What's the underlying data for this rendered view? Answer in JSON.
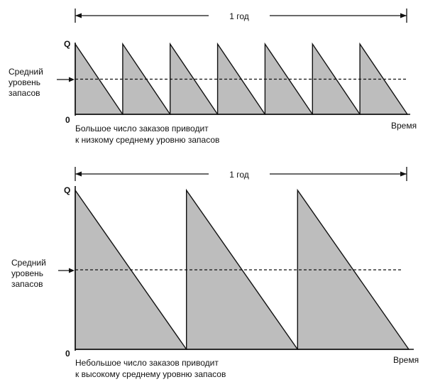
{
  "chart_data": [
    {
      "type": "area",
      "pattern": "sawtooth",
      "cycles": 7,
      "average_fraction": 0.5,
      "y_top_label": "Q",
      "y_zero_label": "0",
      "y_side_label_lines": [
        "Средний",
        "уровень",
        "запасов"
      ],
      "x_axis_label": "Время",
      "span_label": "1 год",
      "caption_lines": [
        "Большое число заказов приводит",
        "к низкому среднему уровню запасов"
      ],
      "fill_color": "#bdbdbd",
      "line_color": "#111111"
    },
    {
      "type": "area",
      "pattern": "sawtooth",
      "cycles": 3,
      "average_fraction": 0.5,
      "y_top_label": "Q",
      "y_zero_label": "0",
      "y_side_label_lines": [
        "Средний",
        "уровень",
        "запасов"
      ],
      "x_axis_label": "Время",
      "span_label": "1 год",
      "caption_lines": [
        "Небольшое число заказов приводит",
        "к высокому среднему уровню запасов"
      ],
      "fill_color": "#bdbdbd",
      "line_color": "#111111"
    }
  ]
}
